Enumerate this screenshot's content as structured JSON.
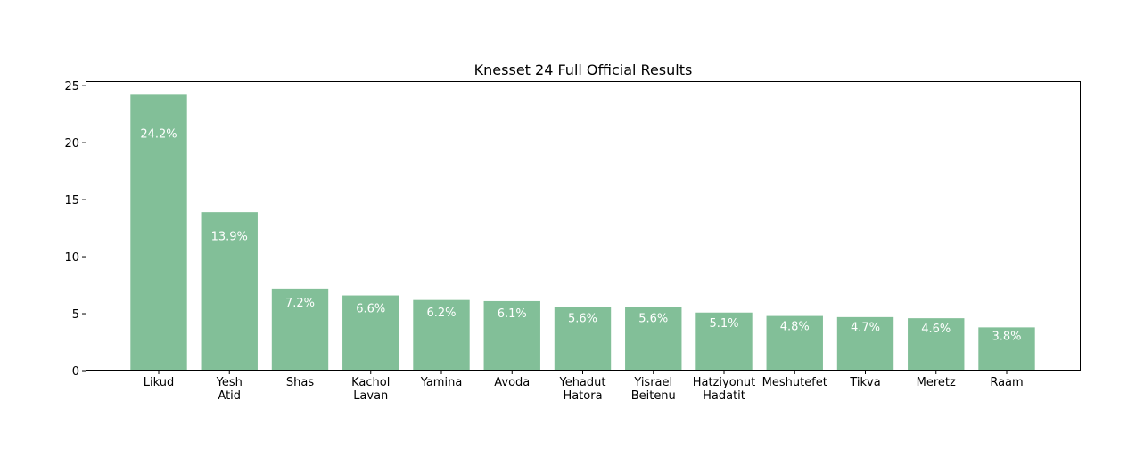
{
  "chart_data": {
    "type": "bar",
    "title": "Knesset 24 Full Official Results",
    "xlabel": "",
    "ylabel": "",
    "categories": [
      "Likud",
      "Yesh\nAtid",
      "Shas",
      "Kachol\nLavan",
      "Yamina",
      "Avoda",
      "Yehadut\nHatora",
      "Yisrael\nBeitenu",
      "Hatziyonut\nHadatit",
      "Meshutefet",
      "Tikva",
      "Meretz",
      "Raam"
    ],
    "values": [
      24.2,
      13.9,
      7.2,
      6.6,
      6.2,
      6.1,
      5.6,
      5.6,
      5.1,
      4.8,
      4.7,
      4.6,
      3.8
    ],
    "value_labels": [
      "24.2%",
      "13.9%",
      "7.2%",
      "6.6%",
      "6.2%",
      "6.1%",
      "5.6%",
      "5.6%",
      "5.1%",
      "4.8%",
      "4.7%",
      "4.6%",
      "3.8%"
    ],
    "yticks": [
      0,
      5,
      10,
      15,
      20,
      25
    ],
    "ylim": [
      0,
      25.4
    ],
    "grid": false,
    "legend": "none",
    "bar_color": "#82bf98",
    "value_label_color": "#ffffff"
  }
}
